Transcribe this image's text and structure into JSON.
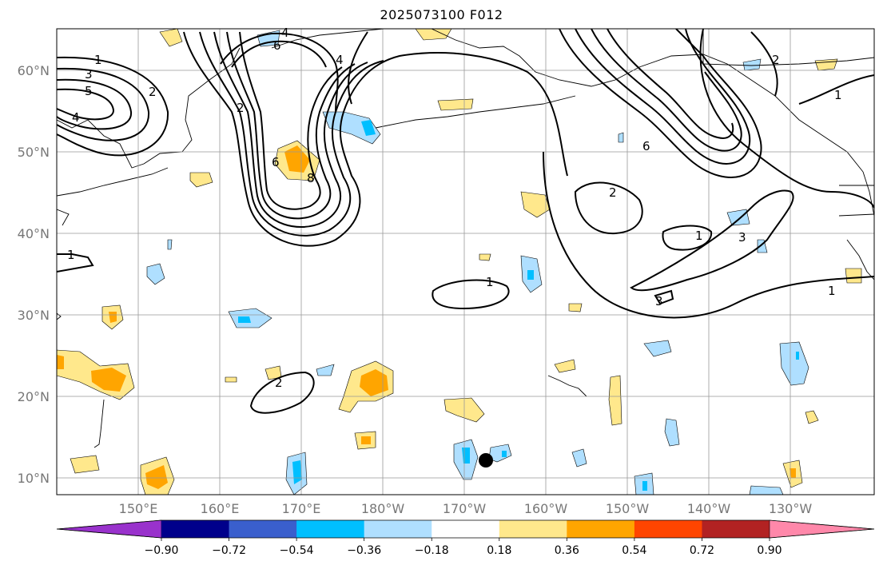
{
  "title": "2025073100 F012",
  "lat_labels": [
    "60°N",
    "50°N",
    "40°N",
    "30°N",
    "20°N",
    "10°N"
  ],
  "lon_labels": [
    "150°E",
    "160°E",
    "170°E",
    "180°W",
    "170°W",
    "160°W",
    "150°W",
    "140°W",
    "130°W"
  ],
  "contour_labels": [
    "1",
    "3",
    "5",
    "2",
    "4",
    "6",
    "4",
    "2",
    "6",
    "8",
    "1",
    "1",
    "2",
    "6",
    "4",
    "2",
    "1",
    "3",
    "3",
    "1",
    "1",
    "2"
  ],
  "colorbar": {
    "labels": [
      "−0.90",
      "−0.72",
      "−0.54",
      "−0.36",
      "−0.18",
      "0.18",
      "0.36",
      "0.54",
      "0.72",
      "0.90"
    ],
    "colors": [
      "#9932cc",
      "#00008b",
      "#3a5fcd",
      "#00bfff",
      "#afdfff",
      "#ffffff",
      "#ffe88c",
      "#ffa500",
      "#ff4500",
      "#b22222",
      "#ff88aa"
    ]
  }
}
